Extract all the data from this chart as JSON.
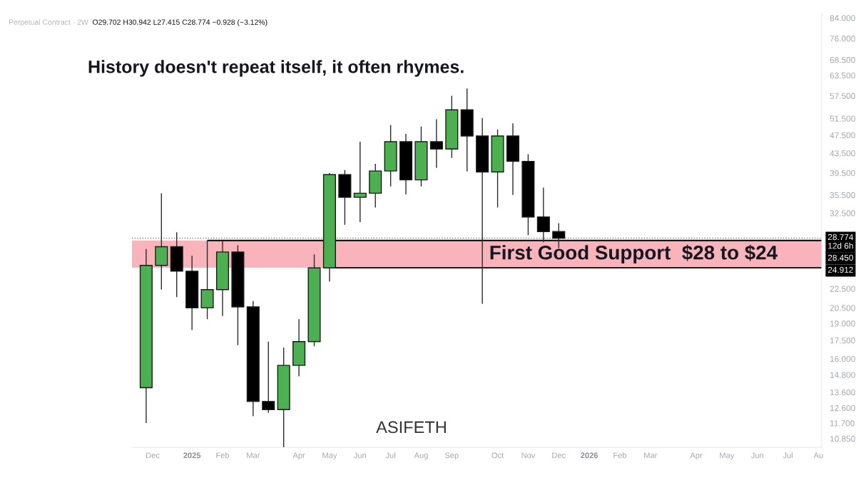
{
  "chart_data": {
    "type": "candlestick",
    "title": "History doesn't repeat itself, it often rhymes.",
    "subtitle": "Perpetual Contract · 2W",
    "x": [
      "2024-11-25",
      "2024-12-09",
      "2024-12-23",
      "2025-01-06",
      "2025-01-20",
      "2025-02-03",
      "2025-02-17",
      "2025-03-03",
      "2025-03-17",
      "2025-03-31",
      "2025-04-14",
      "2025-04-28",
      "2025-05-12",
      "2025-05-26",
      "2025-06-09",
      "2025-06-23",
      "2025-07-07",
      "2025-07-21",
      "2025-08-04",
      "2025-08-18",
      "2025-09-01",
      "2025-09-15",
      "2025-09-29",
      "2025-10-13",
      "2025-10-27",
      "2025-11-10",
      "2025-11-24",
      "2025-12-08"
    ],
    "ohlc": [
      [
        13.9,
        27.3,
        11.7,
        25.2
      ],
      [
        25.2,
        35.8,
        22.4,
        27.6
      ],
      [
        27.6,
        29.6,
        21.6,
        24.5
      ],
      [
        24.5,
        26.4,
        18.4,
        20.5
      ],
      [
        20.5,
        28.45,
        19.4,
        22.4
      ],
      [
        22.4,
        28.4,
        19.7,
        26.9
      ],
      [
        26.9,
        27.8,
        17.1,
        20.6
      ],
      [
        20.6,
        21.2,
        12.1,
        13.0
      ],
      [
        13.0,
        17.4,
        12.3,
        12.5
      ],
      [
        12.5,
        16.9,
        10.4,
        15.5
      ],
      [
        15.5,
        19.4,
        14.7,
        17.4
      ],
      [
        17.4,
        26.6,
        17.0,
        24.9
      ],
      [
        24.9,
        39.5,
        23.3,
        39.2
      ],
      [
        39.2,
        40.1,
        30.7,
        35.1
      ],
      [
        35.1,
        46.0,
        31.1,
        35.8
      ],
      [
        35.8,
        41.3,
        33.4,
        39.9
      ],
      [
        39.9,
        49.9,
        37.0,
        46.0
      ],
      [
        46.0,
        47.8,
        35.6,
        38.2
      ],
      [
        38.2,
        49.5,
        37.0,
        46.0
      ],
      [
        46.0,
        51.3,
        40.5,
        44.4
      ],
      [
        44.4,
        57.5,
        42.5,
        53.7
      ],
      [
        53.7,
        59.6,
        39.8,
        47.3
      ],
      [
        47.3,
        51.6,
        20.9,
        39.7
      ],
      [
        39.7,
        48.8,
        33.4,
        47.3
      ],
      [
        47.3,
        50.3,
        35.5,
        41.8
      ],
      [
        41.8,
        43.3,
        29.2,
        31.9
      ],
      [
        31.9,
        36.8,
        28.2,
        29.7
      ],
      [
        29.702,
        30.942,
        27.415,
        28.774
      ]
    ],
    "colors": [
      "#4caf50",
      "#4caf50",
      "#000000",
      "#000000",
      "#4caf50",
      "#4caf50",
      "#000000",
      "#000000",
      "#000000",
      "#4caf50",
      "#4caf50",
      "#4caf50",
      "#4caf50",
      "#000000",
      "#4caf50",
      "#4caf50",
      "#4caf50",
      "#000000",
      "#4caf50",
      "#000000",
      "#4caf50",
      "#000000",
      "#000000",
      "#4caf50",
      "#000000",
      "#000000",
      "#000000",
      "#000000"
    ],
    "series": [
      {
        "type": "line",
        "x": [
          "2025-01-20",
          "2026-08-06"
        ],
        "values": [
          28.45,
          28.45
        ],
        "color": "#000000",
        "value_labels": [
          null,
          "28.450"
        ]
      },
      {
        "type": "line",
        "x": [
          "2025-05-12",
          "2026-08-06"
        ],
        "values": [
          24.912,
          24.912
        ],
        "color": "#000000",
        "value_labels": [
          null,
          "24.912"
        ]
      }
    ],
    "xlim": [
      "2024-11-12",
      "2026-08-06"
    ],
    "xticks": [
      {
        "value": "2024-12-01",
        "label": "Dec"
      },
      {
        "value": "2025-01-06",
        "label": "2025"
      },
      {
        "value": "2025-02-03",
        "label": "Feb"
      },
      {
        "value": "2025-03-03",
        "label": "Mar"
      },
      {
        "value": "2025-04-14",
        "label": "Apr"
      },
      {
        "value": "2025-05-12",
        "label": "May"
      },
      {
        "value": "2025-06-09",
        "label": "Jun"
      },
      {
        "value": "2025-07-07",
        "label": "Jul"
      },
      {
        "value": "2025-08-04",
        "label": "Aug"
      },
      {
        "value": "2025-09-01",
        "label": "Sep"
      },
      {
        "value": "2025-10-13",
        "label": "Oct"
      },
      {
        "value": "2025-11-10",
        "label": "Nov"
      },
      {
        "value": "2025-12-08",
        "label": "Dec"
      },
      {
        "value": "2026-01-05",
        "label": "2026"
      },
      {
        "value": "2026-02-02",
        "label": "Feb"
      },
      {
        "value": "2026-03-02",
        "label": "Mar"
      },
      {
        "value": "2026-04-13",
        "label": "Apr"
      },
      {
        "value": "2026-05-11",
        "label": "May"
      },
      {
        "value": "2026-06-08",
        "label": "Jun"
      },
      {
        "value": "2026-07-06",
        "label": "Jul"
      },
      {
        "value": "2026-08-03",
        "label": "Au"
      }
    ],
    "log": true,
    "ylim": [
      10.4,
      85.8
    ],
    "yticks": [
      {
        "value": 84,
        "label": "84.000"
      },
      {
        "value": 76,
        "label": "76.000"
      },
      {
        "value": 68.5,
        "label": "68.500"
      },
      {
        "value": 63.5,
        "label": "63.500"
      },
      {
        "value": 57.5,
        "label": "57.500"
      },
      {
        "value": 51.5,
        "label": "51.500"
      },
      {
        "value": 47.5,
        "label": "47.500"
      },
      {
        "value": 43.5,
        "label": "43.500"
      },
      {
        "value": 39.5,
        "label": "39.500"
      },
      {
        "value": 35.5,
        "label": "35.500"
      },
      {
        "value": 32.5,
        "label": "32.500"
      },
      {
        "value": 22.5,
        "label": "22.500"
      },
      {
        "value": 20.5,
        "label": "20.500"
      },
      {
        "value": 19,
        "label": "19.000"
      },
      {
        "value": 17.5,
        "label": "17.500"
      },
      {
        "value": 16,
        "label": "16.000"
      },
      {
        "value": 14.8,
        "label": "14.800"
      },
      {
        "value": 13.6,
        "label": "13.600"
      },
      {
        "value": 12.6,
        "label": "12.600"
      },
      {
        "value": 11.7,
        "label": "11.700"
      },
      {
        "value": 10.85,
        "label": "10.850"
      }
    ],
    "bands": [
      {
        "axis": "y",
        "from": 24.912,
        "to": 28.45,
        "label": "First Good Support  $28 to $24",
        "color": "#f8b4ba"
      }
    ],
    "ref_lines": [
      {
        "axis": "y",
        "value": 28.774,
        "label": "28.774\n12d 6h",
        "line_style": "dotted",
        "color": "#888888"
      }
    ],
    "annotations": [
      "O29.702 H30.942 L27.415 C28.774 −0.928 (−3.12%)",
      "ASIFETH"
    ]
  }
}
